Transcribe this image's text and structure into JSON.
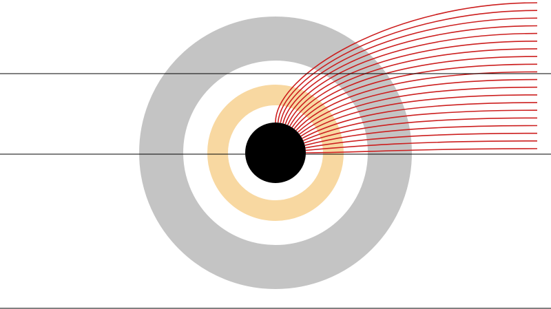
{
  "diagram": {
    "background_color": "#ffffff",
    "outer_ring": {
      "color": "#c4c4c4"
    },
    "inner_ring": {
      "color": "#f8d8a1"
    },
    "core": {
      "color": "#000000"
    },
    "reference_lines": {
      "color": "#000000",
      "count": 3
    },
    "rays": {
      "count": 20,
      "stroke_color": "#cc1e1e"
    }
  }
}
